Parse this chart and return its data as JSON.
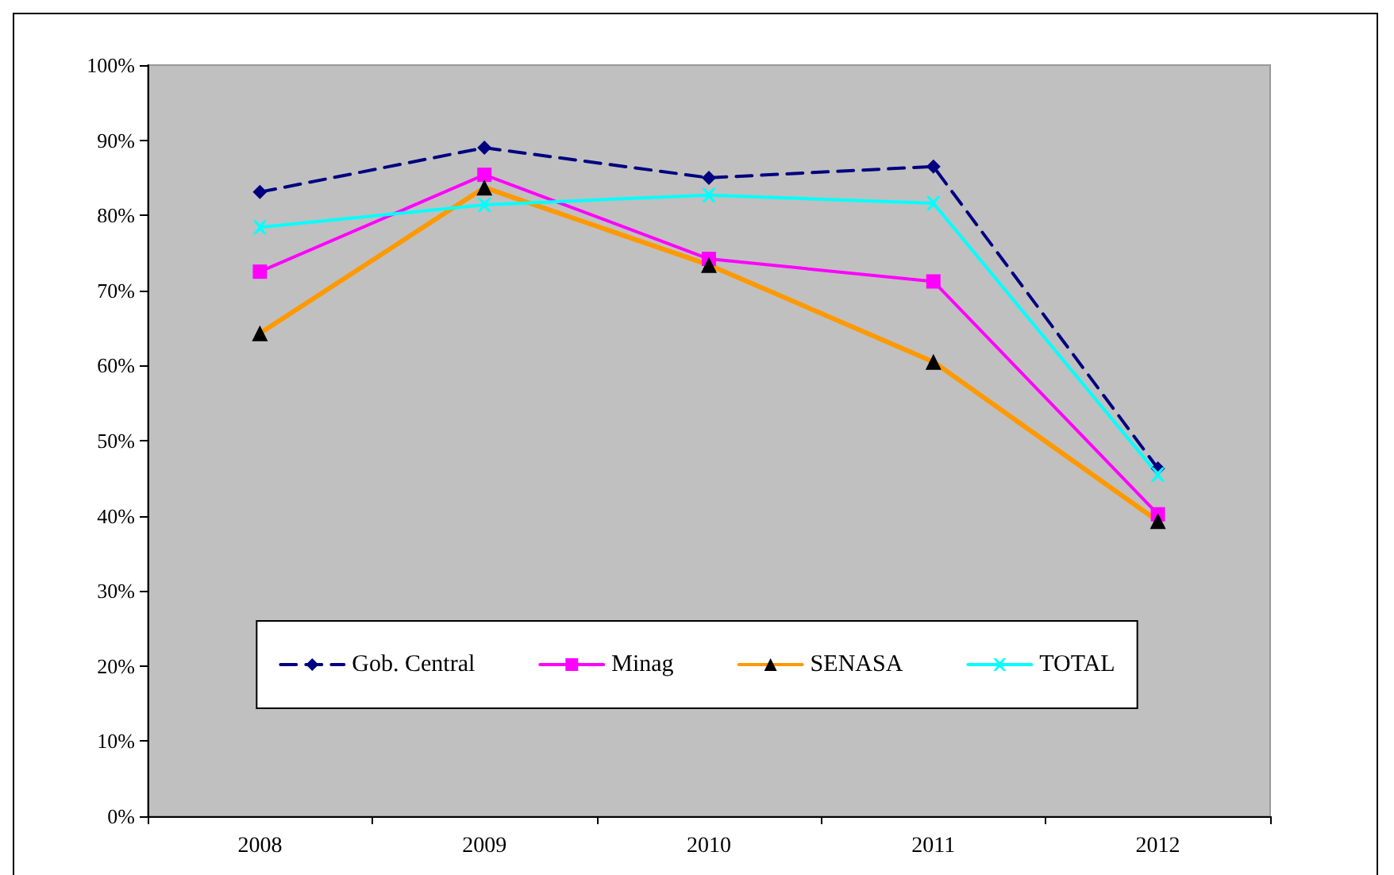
{
  "chart_data": {
    "type": "line",
    "categories": [
      "2008",
      "2009",
      "2010",
      "2011",
      "2012"
    ],
    "series": [
      {
        "name": "Gob. Central",
        "color": "#000080",
        "marker": "diamond",
        "line_style": "dashed",
        "values": [
          83.1,
          89.0,
          85.0,
          86.5,
          46.3
        ]
      },
      {
        "name": "Minag",
        "color": "#ff00ff",
        "marker": "square",
        "line_style": "solid",
        "values": [
          72.5,
          85.4,
          74.2,
          71.2,
          40.2
        ]
      },
      {
        "name": "SENASA",
        "color": "#ff9900",
        "marker": "triangle",
        "line_style": "solid",
        "values": [
          64.3,
          83.7,
          73.4,
          60.5,
          39.3
        ]
      },
      {
        "name": "TOTAL",
        "color": "#00ffff",
        "marker": "cross",
        "line_style": "solid",
        "values": [
          78.4,
          81.4,
          82.7,
          81.6,
          45.5
        ]
      }
    ],
    "ylim": [
      0,
      100
    ],
    "yticks": [
      {
        "value": 0,
        "label": "0%"
      },
      {
        "value": 10,
        "label": "10%"
      },
      {
        "value": 20,
        "label": "20%"
      },
      {
        "value": 30,
        "label": "30%"
      },
      {
        "value": 40,
        "label": "40%"
      },
      {
        "value": 50,
        "label": "50%"
      },
      {
        "value": 60,
        "label": "60%"
      },
      {
        "value": 70,
        "label": "70%"
      },
      {
        "value": 80,
        "label": "80%"
      },
      {
        "value": 90,
        "label": "90%"
      },
      {
        "value": 100,
        "label": "100%"
      }
    ],
    "grid": false,
    "legend": "bottom"
  }
}
